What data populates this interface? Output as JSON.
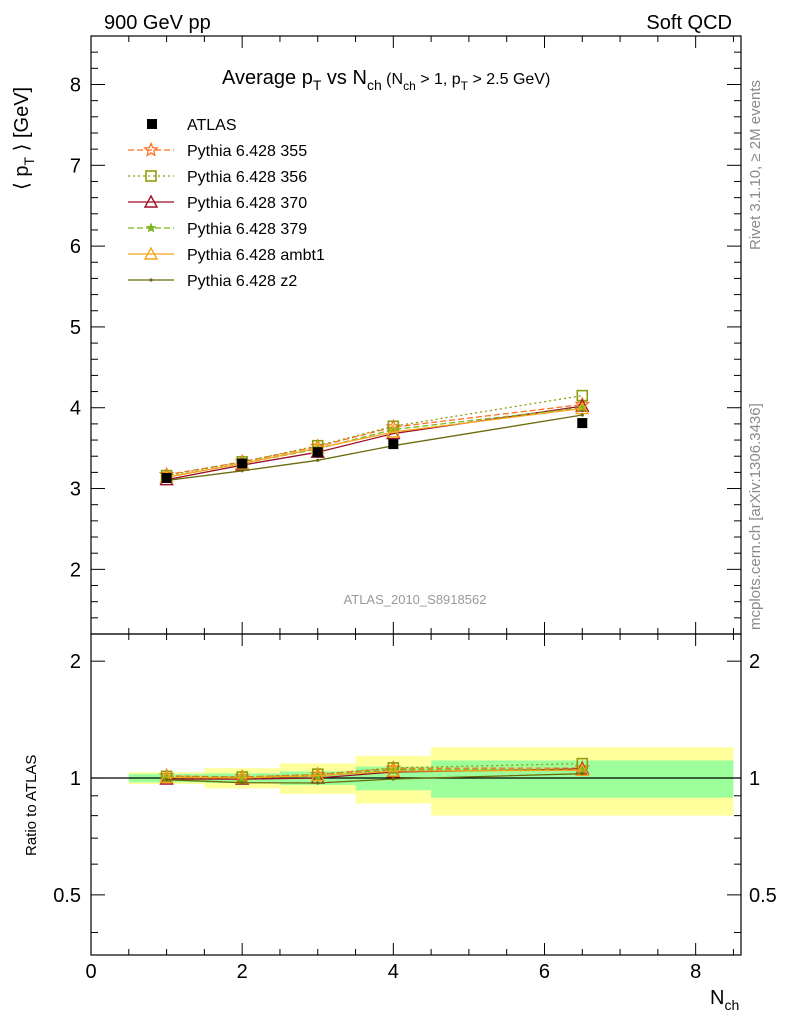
{
  "header": {
    "left": "900 GeV pp",
    "right": "Soft QCD"
  },
  "title": {
    "main": "Average p",
    "main_sub": "T",
    "main_rest": " vs N",
    "main_sub2": "ch",
    "cut_a": " (N",
    "cut_a_sub": "ch",
    "cut_b": " > 1, p",
    "cut_b_sub": "T",
    "cut_c": " > 2.5 GeV)"
  },
  "side_labels": {
    "rivet": "Rivet 3.1.10, ≥ 2M events",
    "mcplots": "mcplots.cern.ch [arXiv:1306.3436]"
  },
  "watermark": "ATLAS_2010_S8918562",
  "axes": {
    "ylabel_main_a": "⟨ p",
    "ylabel_main_sub": "T",
    "ylabel_main_b": " ⟩  [GeV]",
    "ylabel_ratio": "Ratio to ATLAS",
    "xlabel": "N",
    "xlabel_sub": "ch"
  },
  "chart_data": {
    "type": "line",
    "x_range": [
      0,
      8.6
    ],
    "main_y_range": [
      1.2,
      8.6
    ],
    "ratio_y_range": [
      0.35,
      2.35
    ],
    "ratio_y_scale": "log",
    "main_y_ticks": [
      "2",
      "3",
      "4",
      "5",
      "6",
      "7",
      "8"
    ],
    "ratio_y_ticks": [
      "0.5",
      "1",
      "2"
    ],
    "x_ticks": [
      "0",
      "2",
      "4",
      "6",
      "8"
    ],
    "data": {
      "name": "ATLAS",
      "x": [
        1,
        2,
        3,
        4,
        6.5
      ],
      "y": [
        3.13,
        3.31,
        3.45,
        3.55,
        3.81
      ]
    },
    "band_edges": [
      0.5,
      1.5,
      2.5,
      3.5,
      4.5,
      8.5
    ],
    "band_stat_rel": [
      0.025,
      0.028,
      0.04,
      0.07,
      0.11
    ],
    "band_total_rel": [
      0.035,
      0.06,
      0.09,
      0.14,
      0.2
    ],
    "legend_position": "top-left",
    "series": [
      {
        "name": "Pythia 6.428 355",
        "color": "#ff6f1f",
        "dash": "6,3",
        "marker": "star-open",
        "x": [
          1,
          2,
          3,
          4,
          6.5
        ],
        "y": [
          3.17,
          3.33,
          3.52,
          3.76,
          4.04
        ]
      },
      {
        "name": "Pythia 6.428 356",
        "color": "#8c9c0c",
        "dash": "2,3",
        "marker": "square-open",
        "x": [
          1,
          2,
          3,
          4,
          6.5
        ],
        "y": [
          3.16,
          3.33,
          3.53,
          3.77,
          4.15
        ]
      },
      {
        "name": "Pythia 6.428 370",
        "color": "#9c0f28",
        "dash": "",
        "marker": "triangle-open",
        "x": [
          1,
          2,
          3,
          4,
          6.5
        ],
        "y": [
          3.11,
          3.29,
          3.45,
          3.68,
          4.02
        ]
      },
      {
        "name": "Pythia 6.428 379",
        "color": "#7cb51c",
        "dash": "6,3",
        "marker": "star-filled",
        "x": [
          1,
          2,
          3,
          4,
          6.5
        ],
        "y": [
          3.14,
          3.31,
          3.49,
          3.73,
          4.0
        ]
      },
      {
        "name": "Pythia 6.428 ambt1",
        "color": "#f5a51c",
        "dash": "",
        "marker": "triangle-open",
        "x": [
          1,
          2,
          3,
          4,
          6.5
        ],
        "y": [
          3.14,
          3.31,
          3.5,
          3.7,
          3.99
        ]
      },
      {
        "name": "Pythia 6.428 z2",
        "color": "#6b6b0c",
        "dash": "",
        "marker": "dot",
        "x": [
          1,
          2,
          3,
          4,
          6.5
        ],
        "y": [
          3.1,
          3.22,
          3.35,
          3.53,
          3.91
        ]
      }
    ]
  }
}
